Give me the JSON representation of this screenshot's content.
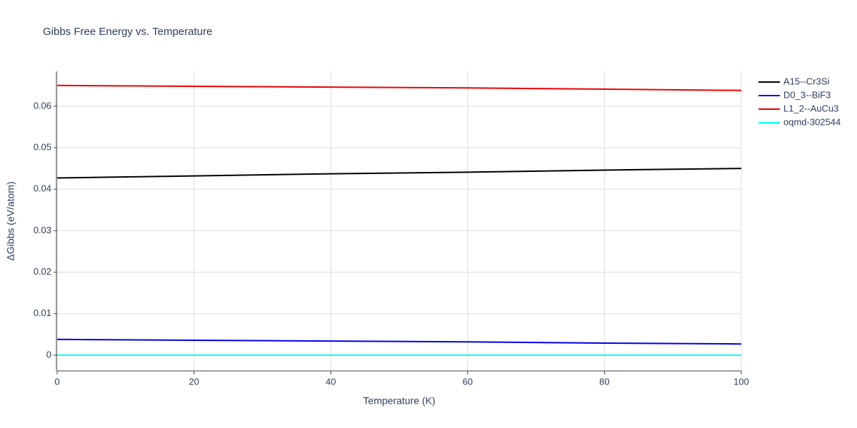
{
  "chart_data": {
    "type": "line",
    "title": "Gibbs Free Energy vs. Temperature",
    "x_label": "Temperature (K)",
    "y_label": "ΔGibbs (eV/atom)",
    "x": [
      0,
      20,
      40,
      60,
      80,
      100
    ],
    "series": [
      {
        "name": "A15--Cr3Si",
        "color": "#000000",
        "values": [
          0.0427,
          0.0432,
          0.0437,
          0.0441,
          0.0446,
          0.045
        ]
      },
      {
        "name": "D0_3--BiF3",
        "color": "#0000ee",
        "values": [
          0.0038,
          0.0036,
          0.0034,
          0.0032,
          0.0029,
          0.0027
        ]
      },
      {
        "name": "L1_2--AuCu3",
        "color": "#ee0000",
        "values": [
          0.065,
          0.0648,
          0.0646,
          0.0644,
          0.0641,
          0.0638
        ]
      },
      {
        "name": "oqmd-302544",
        "color": "#00ffff",
        "values": [
          0,
          0,
          0,
          0,
          0,
          0
        ]
      }
    ],
    "xlim": [
      0,
      100
    ],
    "xticks": [
      0,
      20,
      40,
      60,
      80,
      100
    ],
    "ylim": [
      -0.0038,
      0.0684
    ],
    "yticks": [
      0,
      0.01,
      0.02,
      0.03,
      0.04,
      0.05,
      0.06
    ],
    "grid": true,
    "legend": "right"
  }
}
